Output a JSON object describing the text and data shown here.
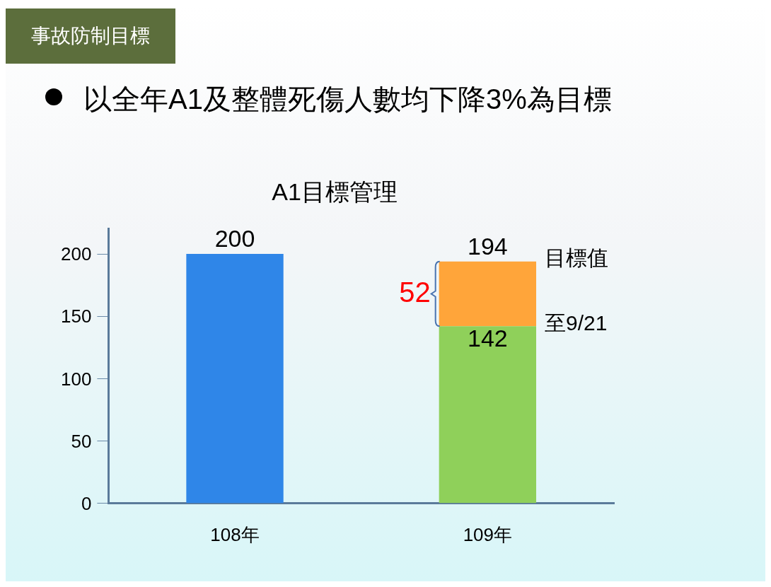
{
  "chart_data": {
    "type": "bar",
    "title": "A1目標管理",
    "stacked": true,
    "categories": [
      "108年",
      "109年"
    ],
    "series": [
      {
        "colors": [
          "#2f86e8",
          "#8fd05a"
        ],
        "values": [
          200,
          142
        ],
        "value_labels": [
          "200",
          "142"
        ]
      },
      {
        "color": "#ffa53a",
        "values": [
          null,
          52
        ],
        "value_labels": [
          null,
          "52"
        ]
      }
    ],
    "totals": [
      null,
      "194"
    ],
    "ylim": [
      0,
      220
    ],
    "yticks": [
      0,
      50,
      100,
      150,
      200
    ],
    "grid": false,
    "legend": false,
    "annotations": [
      "事故防制目標",
      "以全年A1及整體死傷人數均下降3%為目標",
      {
        "text": "目標值",
        "x": "109年",
        "y": 194
      },
      {
        "text": "至9/21",
        "x": "109年",
        "y": 142
      }
    ]
  }
}
